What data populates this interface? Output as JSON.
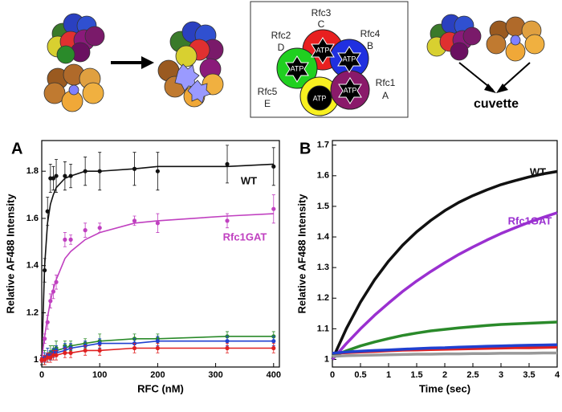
{
  "diagram": {
    "subunits": [
      {
        "name": "Rfc3",
        "letter": "C",
        "nucleotide": "ATP"
      },
      {
        "name": "Rfc2",
        "letter": "D",
        "nucleotide": "ATP"
      },
      {
        "name": "Rfc4",
        "letter": "B",
        "nucleotide": "ATP"
      },
      {
        "name": "Rfc5",
        "letter": "E",
        "nucleotide": "ATP"
      },
      {
        "name": "Rfc1",
        "letter": "A",
        "nucleotide": "ATP"
      }
    ],
    "cuvette": "cuvette"
  },
  "chart_data": [
    {
      "type": "scatter",
      "panel_label": "A",
      "x_label": "RFC (nM)",
      "y_label": "Relative AF488 Intensity",
      "xlim": [
        0,
        410
      ],
      "ylim": [
        0.97,
        1.93
      ],
      "xticks": [
        0,
        100,
        200,
        300,
        400
      ],
      "yticks": [
        1,
        1.2,
        1.4,
        1.6,
        1.8
      ],
      "x": [
        0,
        5,
        10,
        15,
        20,
        25,
        40,
        50,
        75,
        100,
        160,
        200,
        320,
        400
      ],
      "series": [
        {
          "name": "WT",
          "color": "#111111",
          "values": [
            1.0,
            1.38,
            1.63,
            1.77,
            1.77,
            1.78,
            1.78,
            1.78,
            1.8,
            1.8,
            1.81,
            1.8,
            1.83,
            1.82
          ],
          "errors": [
            0.02,
            0.05,
            0.06,
            0.06,
            0.05,
            0.07,
            0.06,
            0.05,
            0.06,
            0.08,
            0.07,
            0.08,
            0.08,
            0.08
          ],
          "fit": [
            1.0,
            1.4,
            1.58,
            1.66,
            1.7,
            1.73,
            1.77,
            1.78,
            1.8,
            1.8,
            1.81,
            1.82,
            1.82,
            1.83
          ]
        },
        {
          "name": "Rfc1GAT",
          "color": "#c040c0",
          "values": [
            1.0,
            1.09,
            1.16,
            1.25,
            1.29,
            1.33,
            1.51,
            1.51,
            1.55,
            1.56,
            1.59,
            1.58,
            1.59,
            1.64
          ],
          "errors": [
            0.01,
            0.02,
            0.03,
            0.03,
            0.03,
            0.03,
            0.03,
            0.02,
            0.03,
            0.02,
            0.02,
            0.04,
            0.03,
            0.06
          ],
          "fit": [
            1.0,
            1.1,
            1.18,
            1.25,
            1.3,
            1.34,
            1.43,
            1.46,
            1.51,
            1.54,
            1.58,
            1.59,
            1.61,
            1.62
          ]
        },
        {
          "color": "#2a8a2a",
          "values": [
            1.0,
            1.01,
            1.02,
            1.03,
            1.04,
            1.05,
            1.06,
            1.06,
            1.07,
            1.08,
            1.09,
            1.09,
            1.1,
            1.1
          ],
          "errors": [
            0.01,
            0.03,
            0.03,
            0.03,
            0.02,
            0.03,
            0.02,
            0.02,
            0.02,
            0.03,
            0.02,
            0.02,
            0.02,
            0.02
          ],
          "fit": [
            1.0,
            1.01,
            1.02,
            1.03,
            1.04,
            1.04,
            1.05,
            1.06,
            1.07,
            1.08,
            1.09,
            1.09,
            1.1,
            1.1
          ]
        },
        {
          "color": "#2040d0",
          "values": [
            1.0,
            1.01,
            1.02,
            1.02,
            1.03,
            1.04,
            1.05,
            1.05,
            1.06,
            1.07,
            1.07,
            1.08,
            1.08,
            1.08
          ],
          "errors": [
            0.01,
            0.02,
            0.03,
            0.02,
            0.02,
            0.02,
            0.02,
            0.02,
            0.02,
            0.02,
            0.02,
            0.02,
            0.02,
            0.02
          ],
          "fit": [
            1.0,
            1.01,
            1.02,
            1.02,
            1.03,
            1.03,
            1.04,
            1.05,
            1.06,
            1.07,
            1.07,
            1.08,
            1.08,
            1.08
          ]
        },
        {
          "color": "#e02020",
          "values": [
            1.0,
            1.0,
            1.01,
            1.01,
            1.02,
            1.02,
            1.03,
            1.03,
            1.04,
            1.04,
            1.05,
            1.05,
            1.05,
            1.05
          ],
          "errors": [
            0.01,
            0.02,
            0.02,
            0.02,
            0.02,
            0.02,
            0.02,
            0.02,
            0.02,
            0.02,
            0.02,
            0.02,
            0.02,
            0.02
          ],
          "fit": [
            1.0,
            1.0,
            1.01,
            1.01,
            1.02,
            1.02,
            1.03,
            1.03,
            1.04,
            1.04,
            1.05,
            1.05,
            1.05,
            1.05
          ]
        }
      ]
    },
    {
      "type": "line",
      "panel_label": "B",
      "x_label": "Time (sec)",
      "y_label": "Relative AF488 Intensity",
      "xlim": [
        0,
        4
      ],
      "ylim": [
        0.975,
        1.715
      ],
      "xticks": [
        0,
        0.5,
        1,
        1.5,
        2,
        2.5,
        3,
        3.5,
        4
      ],
      "yticks": [
        1,
        1.1,
        1.2,
        1.3,
        1.4,
        1.5,
        1.6,
        1.7
      ],
      "x": [
        0,
        0.25,
        0.5,
        0.75,
        1,
        1.25,
        1.5,
        1.75,
        2,
        2.25,
        2.5,
        2.75,
        3,
        3.25,
        3.5,
        3.75,
        4
      ],
      "series": [
        {
          "name": "WT",
          "color": "#111111",
          "values": [
            1.0,
            1.101,
            1.187,
            1.26,
            1.321,
            1.373,
            1.417,
            1.454,
            1.486,
            1.513,
            1.535,
            1.554,
            1.571,
            1.584,
            1.596,
            1.606,
            1.614
          ]
        },
        {
          "name": "Rfc1GAT",
          "color": "#9a30d0",
          "values": [
            1.0,
            1.052,
            1.1,
            1.144,
            1.184,
            1.222,
            1.256,
            1.287,
            1.316,
            1.343,
            1.367,
            1.39,
            1.411,
            1.43,
            1.448,
            1.464,
            1.479
          ]
        },
        {
          "color": "#2a8a2a",
          "values": [
            1.01,
            1.028,
            1.044,
            1.057,
            1.068,
            1.078,
            1.086,
            1.093,
            1.098,
            1.103,
            1.107,
            1.111,
            1.114,
            1.116,
            1.118,
            1.12,
            1.122
          ]
        },
        {
          "color": "#999999",
          "values": [
            1.01,
            1.012,
            1.013,
            1.014,
            1.015,
            1.016,
            1.017,
            1.017,
            1.018,
            1.018,
            1.019,
            1.019,
            1.02,
            1.02,
            1.02,
            1.021,
            1.021
          ]
        },
        {
          "color": "#e02020",
          "values": [
            1.02,
            1.022,
            1.024,
            1.026,
            1.028,
            1.03,
            1.031,
            1.032,
            1.033,
            1.034,
            1.035,
            1.036,
            1.037,
            1.038,
            1.038,
            1.039,
            1.04
          ]
        },
        {
          "color": "#2040d0",
          "values": [
            1.02,
            1.024,
            1.027,
            1.029,
            1.031,
            1.033,
            1.035,
            1.037,
            1.038,
            1.04,
            1.041,
            1.043,
            1.044,
            1.045,
            1.046,
            1.047,
            1.048
          ]
        }
      ]
    }
  ]
}
